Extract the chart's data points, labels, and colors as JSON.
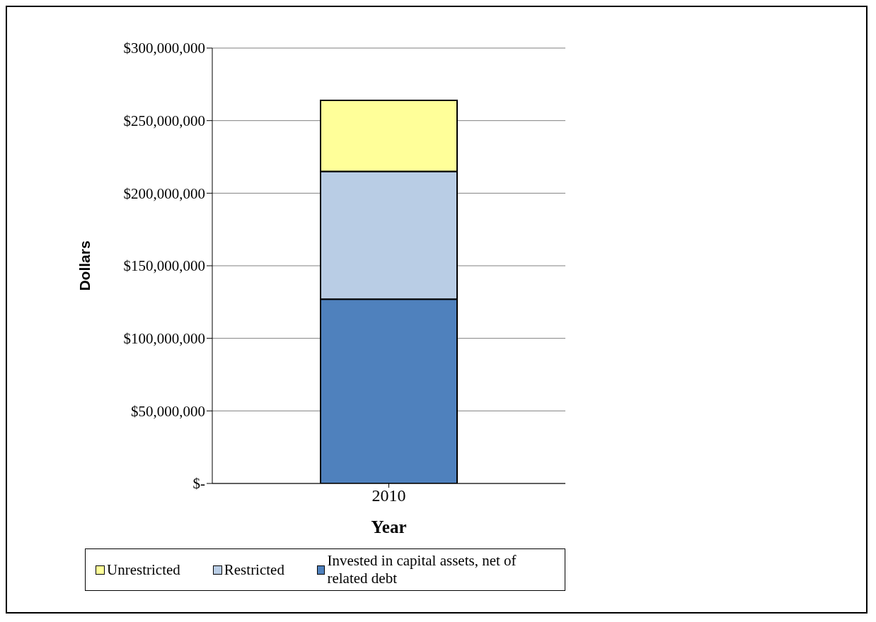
{
  "chart_data": {
    "type": "bar",
    "xlabel": "Year",
    "ylabel": "Dollars",
    "categories": [
      "2010"
    ],
    "stacked": true,
    "series": [
      {
        "name": "Invested in capital assets, net of related debt",
        "color": "#4f81bd",
        "values": [
          127000000
        ]
      },
      {
        "name": "Restricted",
        "color": "#b9cde5",
        "values": [
          88000000
        ]
      },
      {
        "name": "Unrestricted",
        "color": "#ffff99",
        "values": [
          49000000
        ]
      }
    ],
    "ylim": [
      0,
      300000000
    ],
    "yticks": [
      {
        "value": 0,
        "label": "$-"
      },
      {
        "value": 50000000,
        "label": "$50,000,000"
      },
      {
        "value": 100000000,
        "label": "$100,000,000"
      },
      {
        "value": 150000000,
        "label": "$150,000,000"
      },
      {
        "value": 200000000,
        "label": "$200,000,000"
      },
      {
        "value": 250000000,
        "label": "$250,000,000"
      },
      {
        "value": 300000000,
        "label": "$300,000,000"
      }
    ],
    "grid": "y",
    "legend": "bottom"
  }
}
